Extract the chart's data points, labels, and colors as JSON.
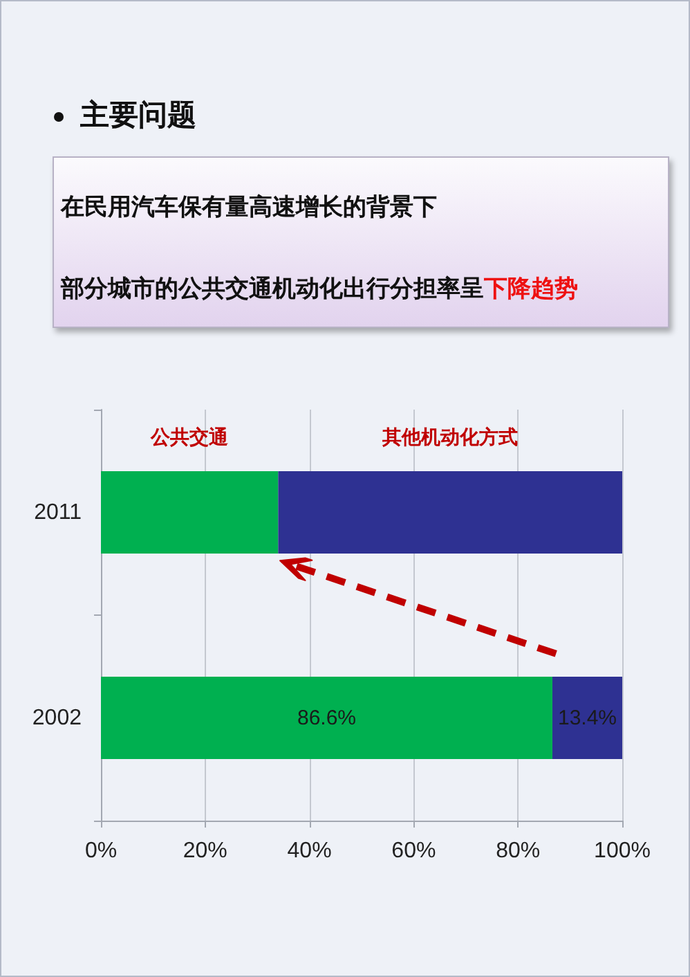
{
  "chart_data": {
    "type": "bar",
    "orientation": "horizontal",
    "stacked": true,
    "title": "主要问题",
    "subtitle": "在民用汽车保有量高速增长的背景下",
    "annotations": [
      "部分城市的公共交通机动化出行分担率呈",
      "下降趋势"
    ],
    "categories": [
      "2011",
      "2002"
    ],
    "series": [
      {
        "name": "公共交通",
        "color": "#00b050",
        "values": [
          34,
          86.6
        ],
        "value_labels": [
          null,
          "86.6%"
        ]
      },
      {
        "name": "其他机动化方式",
        "color": "#2e3192",
        "values": [
          66,
          13.4
        ],
        "value_labels": [
          null,
          "13.4%"
        ]
      }
    ],
    "xlim": [
      0,
      100
    ],
    "xticks": [
      {
        "value": 0,
        "label": "0%"
      },
      {
        "value": 20,
        "label": "20%"
      },
      {
        "value": 40,
        "label": "40%"
      },
      {
        "value": 60,
        "label": "60%"
      },
      {
        "value": 80,
        "label": "80%"
      },
      {
        "value": 100,
        "label": "100%"
      }
    ],
    "grid": "x"
  }
}
